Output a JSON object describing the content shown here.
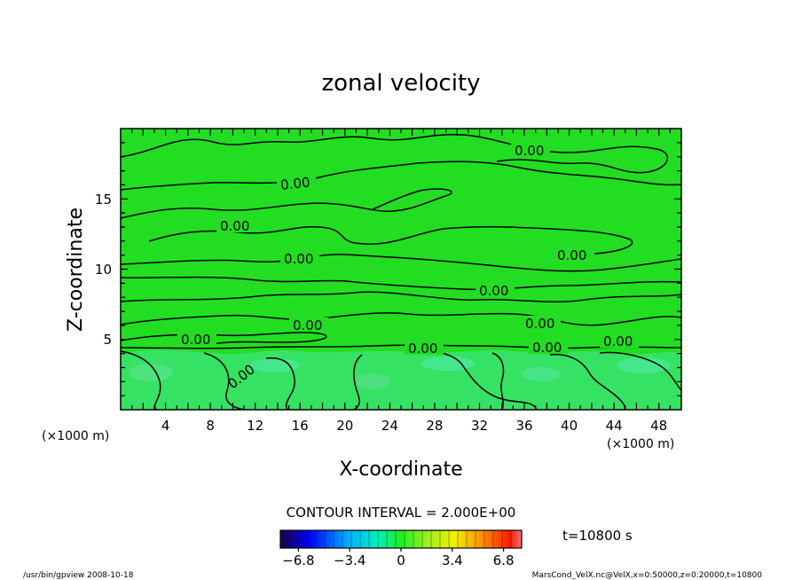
{
  "chart_data": {
    "type": "contour",
    "title": "zonal velocity",
    "xlabel": "X-coordinate",
    "ylabel": "Z-coordinate",
    "x_unit": "(×1000 m)",
    "y_unit": "(×1000 m)",
    "xlim": [
      0,
      50
    ],
    "ylim": [
      0,
      20
    ],
    "x_ticks": [
      4,
      8,
      12,
      16,
      20,
      24,
      28,
      32,
      36,
      40,
      44,
      48
    ],
    "y_ticks": [
      5,
      10,
      15
    ],
    "contour_label_text": "0.00",
    "contour_label_positions": [
      {
        "x": 37.5,
        "z": 18.5
      },
      {
        "x": 15.4,
        "z": 16.0
      },
      {
        "x": 10.5,
        "z": 13.2
      },
      {
        "x": 16.0,
        "z": 10.8
      },
      {
        "x": 33.0,
        "z": 8.5
      },
      {
        "x": 37.5,
        "z": 6.2
      },
      {
        "x": 17.0,
        "z": 6.0
      },
      {
        "x": 7.0,
        "z": 5.1
      },
      {
        "x": 27.0,
        "z": 4.6
      },
      {
        "x": 38.5,
        "z": 4.7
      },
      {
        "x": 44.5,
        "z": 5.0
      },
      {
        "x": 10.5,
        "z": 2.9
      },
      {
        "x": 40.0,
        "z": 11.0
      }
    ],
    "contour_interval_text": "CONTOUR INTERVAL = 2.000E+00",
    "colorbar": {
      "min": -8,
      "max": 8,
      "tick_values": [
        -6.8,
        -3.4,
        0,
        3.4,
        6.8
      ],
      "tick_labels": [
        "−6.8",
        "−3.4",
        "0",
        "3.4",
        "6.8"
      ]
    },
    "time_label": "t=10800 s",
    "colors": {
      "background_field": "#22dd22",
      "lower_field": "#2ae56a"
    }
  },
  "footer": {
    "left": "/usr/bin/gpview   2008-10-18",
    "right": "MarsCond_VelX.nc@VelX,x=0:50000,z=0:20000,t=10800"
  }
}
